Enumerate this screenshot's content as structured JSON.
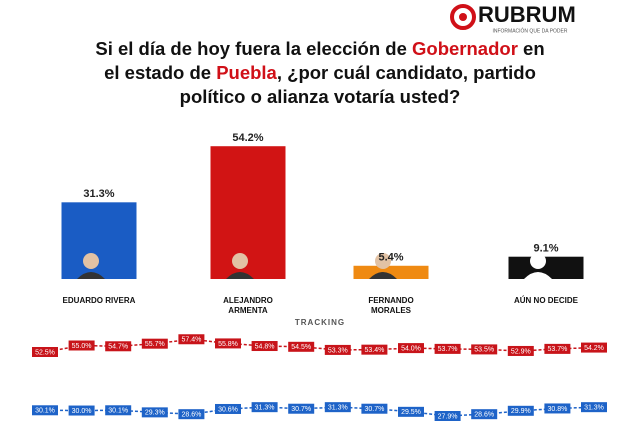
{
  "header": {
    "brand": "RUBRUM",
    "tagline": "INFORMACIÓN QUE DA PODER",
    "title_lines": [
      [
        {
          "text": "Si el día de hoy fuera la elección de "
        },
        {
          "text": "Gobernador",
          "highlight": true
        },
        {
          "text": " en"
        }
      ],
      [
        {
          "text": "el estado de "
        },
        {
          "text": "Puebla",
          "highlight": true
        },
        {
          "text": ", ¿por cuál candidato, partido"
        }
      ],
      [
        {
          "text": "político o alianza votaría usted?"
        }
      ]
    ]
  },
  "chart_data": [
    {
      "type": "bar",
      "categories": [
        "EDUARDO RIVERA",
        "ALEJANDRO ARMENTA",
        "FERNANDO MORALES",
        "AÚN NO DECIDE"
      ],
      "values": [
        31.3,
        54.2,
        5.4,
        9.1
      ],
      "value_labels": [
        "31.3%",
        "54.2%",
        "5.4%",
        "9.1%"
      ],
      "colors": [
        "#1a5cc4",
        "#d11414",
        "#ef8a12",
        "#111111"
      ]
    },
    {
      "type": "line",
      "title": "TRACKING",
      "series": [
        {
          "color": "#c8141a",
          "values": [
            52.5,
            55.0,
            54.7,
            55.7,
            57.4,
            55.8,
            54.8,
            54.5,
            53.3,
            53.4,
            54.0,
            53.7,
            53.5,
            52.9,
            53.7,
            54.2
          ],
          "value_labels": [
            "52.5%",
            "55.0%",
            "54.7%",
            "55.7%",
            "57.4%",
            "55.8%",
            "54.8%",
            "54.5%",
            "53.3%",
            "53.4%",
            "54.0%",
            "53.7%",
            "53.5%",
            "52.9%",
            "53.7%",
            "54.2%"
          ]
        },
        {
          "color": "#1e63c8",
          "values": [
            30.1,
            30.0,
            30.1,
            29.3,
            28.6,
            30.6,
            31.3,
            30.7,
            31.3,
            30.7,
            29.5,
            27.9,
            28.6,
            29.9,
            30.8,
            31.3
          ],
          "value_labels": [
            "30.1%",
            "30.0%",
            "30.1%",
            "29.3%",
            "28.6%",
            "30.6%",
            "31.3%",
            "30.7%",
            "31.3%",
            "30.7%",
            "29.5%",
            "27.9%",
            "28.6%",
            "29.9%",
            "30.8%",
            "31.3%"
          ]
        }
      ]
    }
  ]
}
